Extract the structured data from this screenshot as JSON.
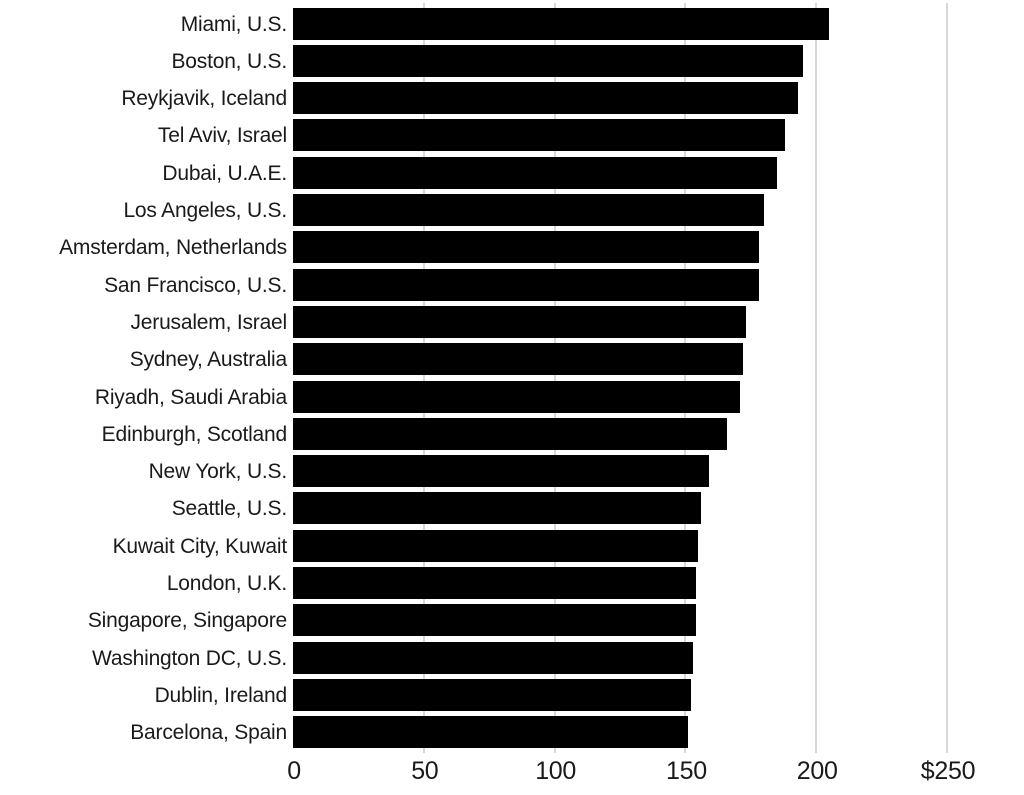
{
  "chart_data": {
    "type": "bar",
    "orientation": "horizontal",
    "title": "",
    "xlabel": "",
    "ylabel": "",
    "unit": "$",
    "xlim": [
      0,
      250
    ],
    "xticks": [
      0,
      50,
      100,
      150,
      200,
      250
    ],
    "xtick_labels": [
      "0",
      "50",
      "100",
      "150",
      "200",
      "$250"
    ],
    "grid": "vertical",
    "legend": "none",
    "categories": [
      "Miami, U.S.",
      "Boston, U.S.",
      "Reykjavik, Iceland",
      "Tel Aviv, Israel",
      "Dubai, U.A.E.",
      "Los Angeles, U.S.",
      "Amsterdam, Netherlands",
      "San Francisco, U.S.",
      "Jerusalem, Israel",
      "Sydney, Australia",
      "Riyadh, Saudi Arabia",
      "Edinburgh, Scotland",
      "New York, U.S.",
      "Seattle, U.S.",
      "Kuwait City, Kuwait",
      "London, U.K.",
      "Singapore, Singapore",
      "Washington DC, U.S.",
      "Dublin, Ireland",
      "Barcelona, Spain"
    ],
    "values": [
      205,
      195,
      193,
      188,
      185,
      180,
      178,
      178,
      173,
      172,
      171,
      166,
      159,
      156,
      155,
      154,
      154,
      153,
      152,
      151
    ],
    "colors": {
      "bar": "#000000",
      "gridline": "#d7d7d7",
      "text": "#1a1a1a",
      "background": "#ffffff"
    }
  }
}
